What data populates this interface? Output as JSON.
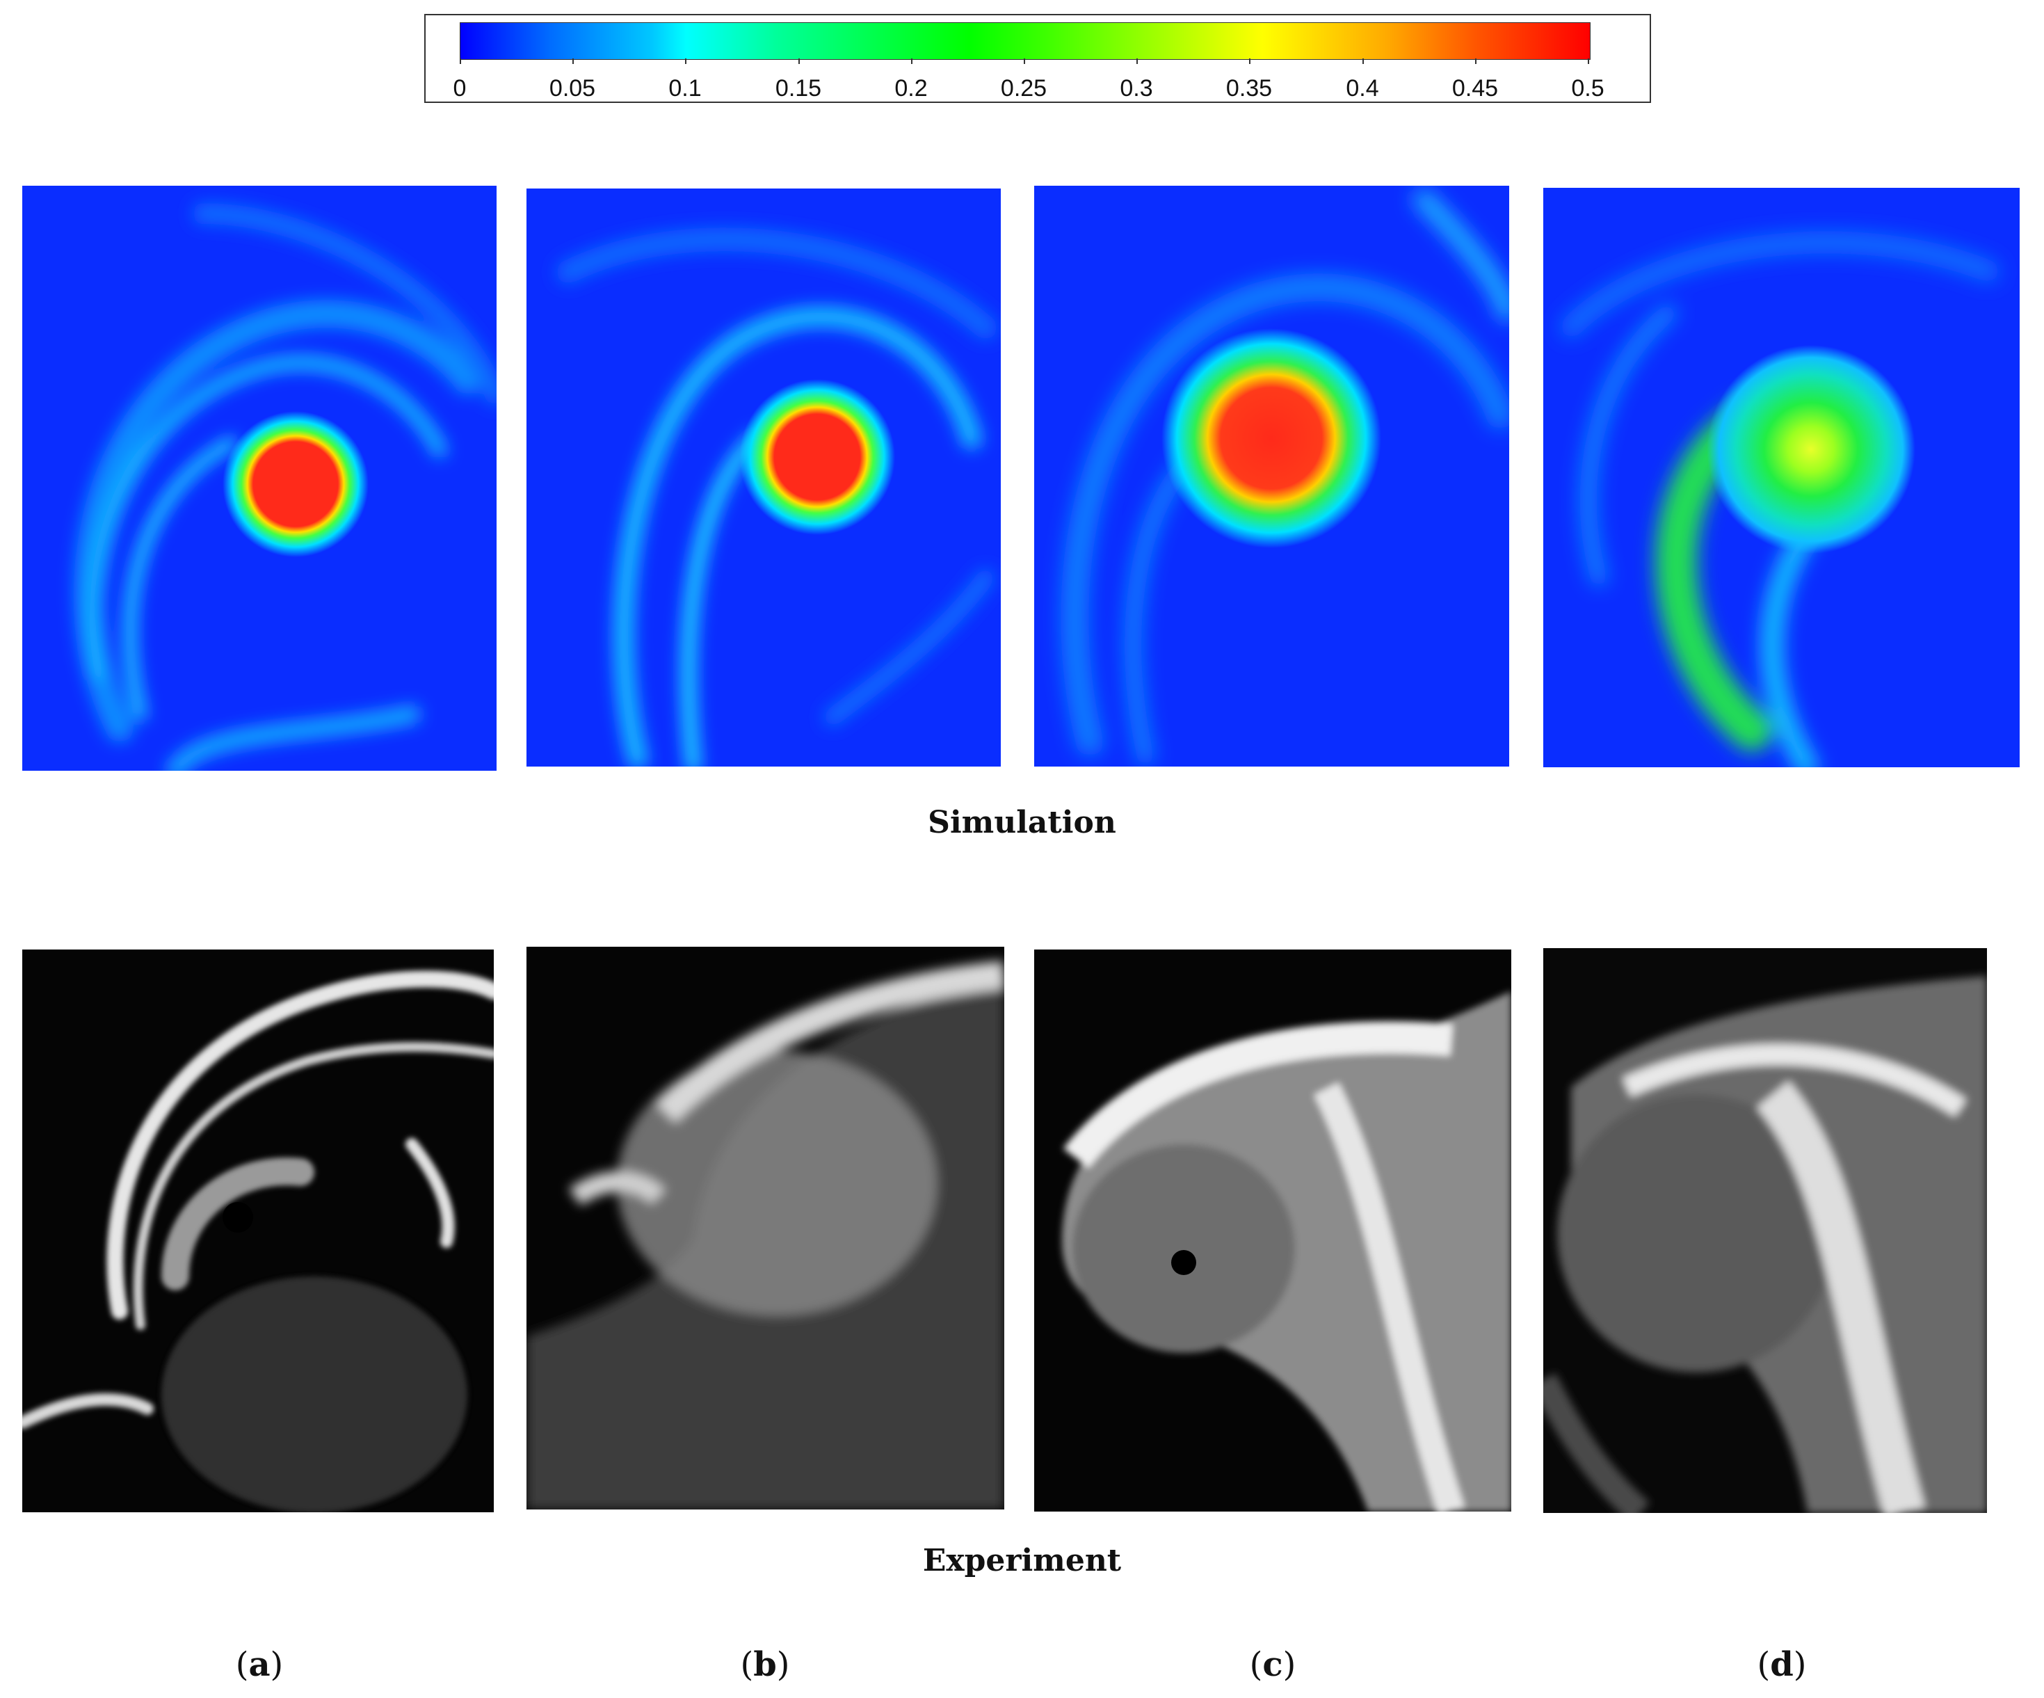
{
  "colorbar": {
    "ticks": [
      "0",
      "0.05",
      "0.1",
      "0.15",
      "0.2",
      "0.25",
      "0.3",
      "0.35",
      "0.4",
      "0.45",
      "0.5"
    ],
    "range": [
      0,
      0.5
    ],
    "colors": [
      "#0000ff",
      "#00ffff",
      "#00ff00",
      "#ffff00",
      "#ff0000"
    ]
  },
  "captions": {
    "simulation": "Simulation",
    "experiment": "Experiment"
  },
  "panels": [
    {
      "letter": "a"
    },
    {
      "letter": "b"
    },
    {
      "letter": "c"
    },
    {
      "letter": "d"
    }
  ]
}
